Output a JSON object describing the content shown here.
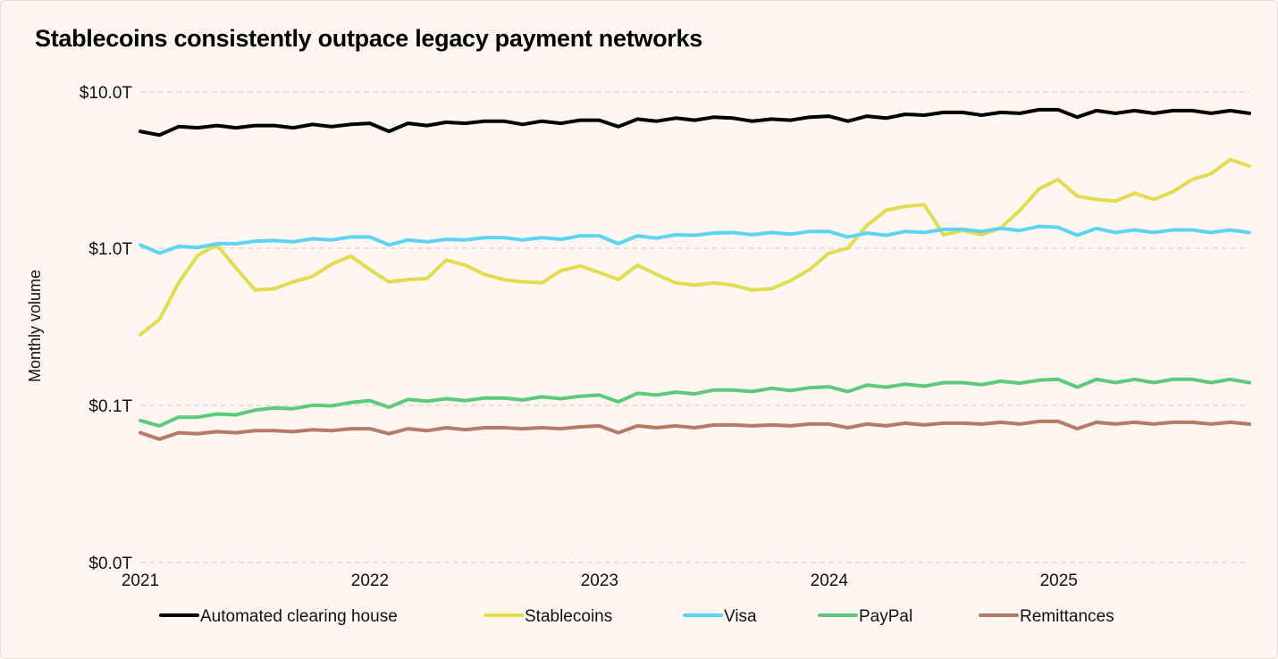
{
  "chart_data": {
    "type": "line",
    "title": "Stablecoins consistently outpace legacy payment networks",
    "ylabel": "Monthly volume",
    "xlabel": "",
    "yscale": "log",
    "yticks": [
      {
        "label": "$10.0T"
      },
      {
        "label": "$1.0T"
      },
      {
        "label": "$0.1T"
      },
      {
        "label": "$0.0T"
      }
    ],
    "xticks": [
      "2021",
      "2022",
      "2023",
      "2024",
      "2025"
    ],
    "x_range_years": [
      2021.0,
      2025.83
    ],
    "legend_position": "bottom",
    "series": [
      {
        "name": "Automated clearing house",
        "color": "#000000",
        "values": [
          5.6,
          5.3,
          6.0,
          5.9,
          6.1,
          5.9,
          6.1,
          6.1,
          5.9,
          6.2,
          6.0,
          6.2,
          6.3,
          5.6,
          6.3,
          6.1,
          6.4,
          6.3,
          6.5,
          6.5,
          6.2,
          6.5,
          6.3,
          6.6,
          6.6,
          6.0,
          6.7,
          6.5,
          6.8,
          6.6,
          6.9,
          6.8,
          6.5,
          6.7,
          6.6,
          6.9,
          7.0,
          6.5,
          7.0,
          6.8,
          7.2,
          7.1,
          7.4,
          7.4,
          7.1,
          7.4,
          7.3,
          7.7,
          7.7,
          6.9,
          7.6,
          7.3,
          7.6,
          7.3,
          7.6,
          7.6,
          7.3,
          7.6,
          7.3
        ]
      },
      {
        "name": "Stablecoins",
        "color": "#e3dc50",
        "values": [
          0.28,
          0.35,
          0.6,
          0.9,
          1.05,
          0.75,
          0.54,
          0.55,
          0.61,
          0.66,
          0.79,
          0.89,
          0.73,
          0.61,
          0.63,
          0.64,
          0.84,
          0.78,
          0.68,
          0.63,
          0.61,
          0.6,
          0.72,
          0.77,
          0.7,
          0.63,
          0.78,
          0.68,
          0.6,
          0.58,
          0.6,
          0.58,
          0.54,
          0.55,
          0.62,
          0.73,
          0.93,
          1.0,
          1.4,
          1.75,
          1.85,
          1.9,
          1.22,
          1.3,
          1.22,
          1.35,
          1.75,
          2.4,
          2.75,
          2.15,
          2.05,
          2.0,
          2.25,
          2.05,
          2.3,
          2.75,
          3.0,
          3.7,
          3.35
        ]
      },
      {
        "name": "Visa",
        "color": "#5ed4f2",
        "values": [
          1.05,
          0.93,
          1.03,
          1.01,
          1.07,
          1.07,
          1.11,
          1.12,
          1.1,
          1.15,
          1.13,
          1.18,
          1.18,
          1.05,
          1.13,
          1.1,
          1.14,
          1.13,
          1.17,
          1.17,
          1.13,
          1.17,
          1.14,
          1.2,
          1.2,
          1.07,
          1.2,
          1.16,
          1.22,
          1.21,
          1.25,
          1.26,
          1.22,
          1.26,
          1.23,
          1.28,
          1.28,
          1.18,
          1.25,
          1.21,
          1.28,
          1.26,
          1.32,
          1.32,
          1.28,
          1.34,
          1.3,
          1.38,
          1.36,
          1.21,
          1.34,
          1.26,
          1.31,
          1.26,
          1.31,
          1.31,
          1.26,
          1.31,
          1.26
        ]
      },
      {
        "name": "PayPal",
        "color": "#5ec97c",
        "values": [
          0.079,
          0.073,
          0.083,
          0.083,
          0.087,
          0.086,
          0.092,
          0.095,
          0.094,
          0.099,
          0.098,
          0.103,
          0.106,
          0.096,
          0.108,
          0.105,
          0.109,
          0.106,
          0.11,
          0.11,
          0.107,
          0.112,
          0.109,
          0.113,
          0.115,
          0.104,
          0.118,
          0.115,
          0.12,
          0.117,
          0.124,
          0.124,
          0.121,
          0.127,
          0.123,
          0.128,
          0.13,
          0.121,
          0.133,
          0.129,
          0.135,
          0.131,
          0.138,
          0.138,
          0.134,
          0.141,
          0.137,
          0.143,
          0.145,
          0.129,
          0.145,
          0.138,
          0.145,
          0.138,
          0.145,
          0.145,
          0.138,
          0.145,
          0.138
        ]
      },
      {
        "name": "Remittances",
        "color": "#b37b68",
        "values": [
          0.066,
          0.06,
          0.066,
          0.065,
          0.067,
          0.066,
          0.068,
          0.068,
          0.067,
          0.069,
          0.068,
          0.07,
          0.07,
          0.065,
          0.07,
          0.068,
          0.071,
          0.069,
          0.071,
          0.071,
          0.07,
          0.071,
          0.07,
          0.072,
          0.073,
          0.066,
          0.073,
          0.071,
          0.073,
          0.071,
          0.074,
          0.074,
          0.073,
          0.074,
          0.073,
          0.075,
          0.075,
          0.071,
          0.075,
          0.073,
          0.076,
          0.074,
          0.076,
          0.076,
          0.075,
          0.077,
          0.075,
          0.078,
          0.078,
          0.07,
          0.077,
          0.075,
          0.077,
          0.075,
          0.077,
          0.077,
          0.075,
          0.077,
          0.075
        ]
      }
    ]
  }
}
